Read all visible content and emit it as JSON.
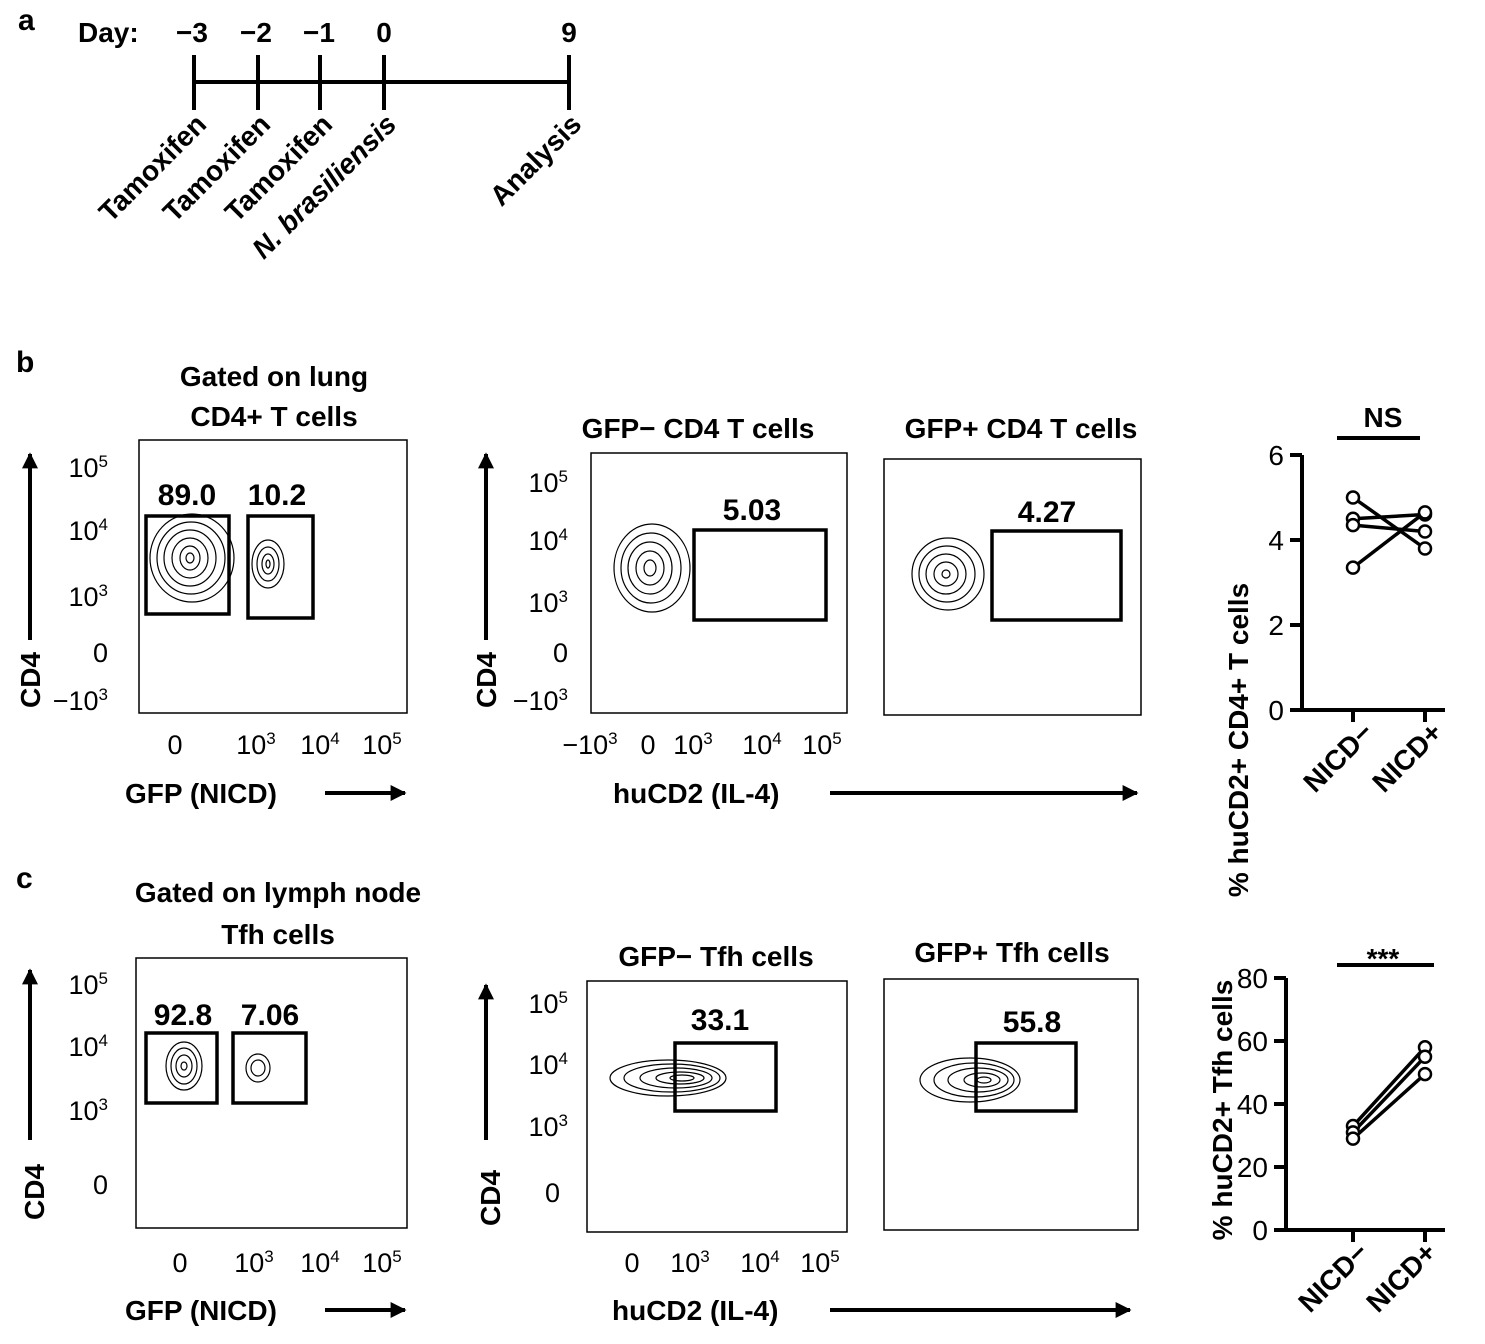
{
  "panels": {
    "a": "a",
    "b": "b",
    "c": "c"
  },
  "timeline": {
    "day_label": "Day:",
    "days": [
      "−3",
      "−2",
      "−1",
      "0",
      "9"
    ],
    "events": [
      "Tamoxifen",
      "Tamoxifen",
      "Tamoxifen",
      "N. brasiliensis",
      "Analysis"
    ]
  },
  "row_b": {
    "gate_title_line1": "Gated on lung",
    "gate_title_line2": "CD4+ T cells",
    "gate_pcts": [
      "89.0",
      "10.2"
    ],
    "gfp_neg_title": "GFP− CD4 T cells",
    "gfp_pos_title": "GFP+ CD4 T cells",
    "gfp_neg_pct": "5.03",
    "gfp_pos_pct": "4.27",
    "y_ticks": [
      "10",
      "10",
      "10",
      "0",
      "−10"
    ],
    "y_exps": [
      "5",
      "4",
      "3",
      "",
      "3"
    ],
    "x_ticks_gfp": [
      "0",
      "10",
      "10",
      "10"
    ],
    "x_exps_gfp": [
      "",
      "3",
      "4",
      "5"
    ],
    "x_ticks_hucd2": [
      "−10",
      "0",
      "10",
      "10",
      "10"
    ],
    "x_exps_hucd2": [
      "3",
      "",
      "3",
      "4",
      "5"
    ],
    "cd4_label": "CD4",
    "gfp_label": "GFP (NICD)",
    "hucd2_label": "huCD2 (IL-4)"
  },
  "row_c": {
    "gate_title_line1": "Gated on lymph node",
    "gate_title_line2": "Tfh cells",
    "gate_pcts": [
      "92.8",
      "7.06"
    ],
    "gfp_neg_title": "GFP− Tfh cells",
    "gfp_pos_title": "GFP+ Tfh cells",
    "gfp_neg_pct": "33.1",
    "gfp_pos_pct": "55.8",
    "y_ticks": [
      "10",
      "10",
      "10",
      "0"
    ],
    "y_exps": [
      "5",
      "4",
      "3",
      ""
    ],
    "x_ticks_gfp": [
      "0",
      "10",
      "10",
      "10"
    ],
    "x_exps_gfp": [
      "",
      "3",
      "4",
      "5"
    ],
    "x_ticks_hucd2": [
      "0",
      "10",
      "10",
      "10"
    ],
    "x_exps_hucd2": [
      "",
      "3",
      "4",
      "5"
    ],
    "cd4_label": "CD4",
    "gfp_label": "GFP (NICD)",
    "hucd2_label": "huCD2 (IL-4)"
  },
  "chart_data": [
    {
      "type": "line",
      "ylabel": "% huCD2+ CD4+ T cells",
      "categories": [
        "NICD−",
        "NICD+"
      ],
      "ylim": [
        0,
        6
      ],
      "yticks": [
        "0",
        "2",
        "4",
        "6"
      ],
      "significance": "NS",
      "pairs": [
        [
          5.0,
          3.8
        ],
        [
          4.5,
          4.6
        ],
        [
          4.35,
          4.2
        ],
        [
          3.35,
          4.65
        ]
      ]
    },
    {
      "type": "line",
      "ylabel": "% huCD2+ Tfh cells",
      "categories": [
        "NICD−",
        "NICD+"
      ],
      "ylim": [
        0,
        80
      ],
      "yticks": [
        "0",
        "20",
        "40",
        "60",
        "80"
      ],
      "significance": "***",
      "pairs": [
        [
          33,
          58
        ],
        [
          31,
          55
        ],
        [
          29,
          49.5
        ]
      ]
    }
  ]
}
